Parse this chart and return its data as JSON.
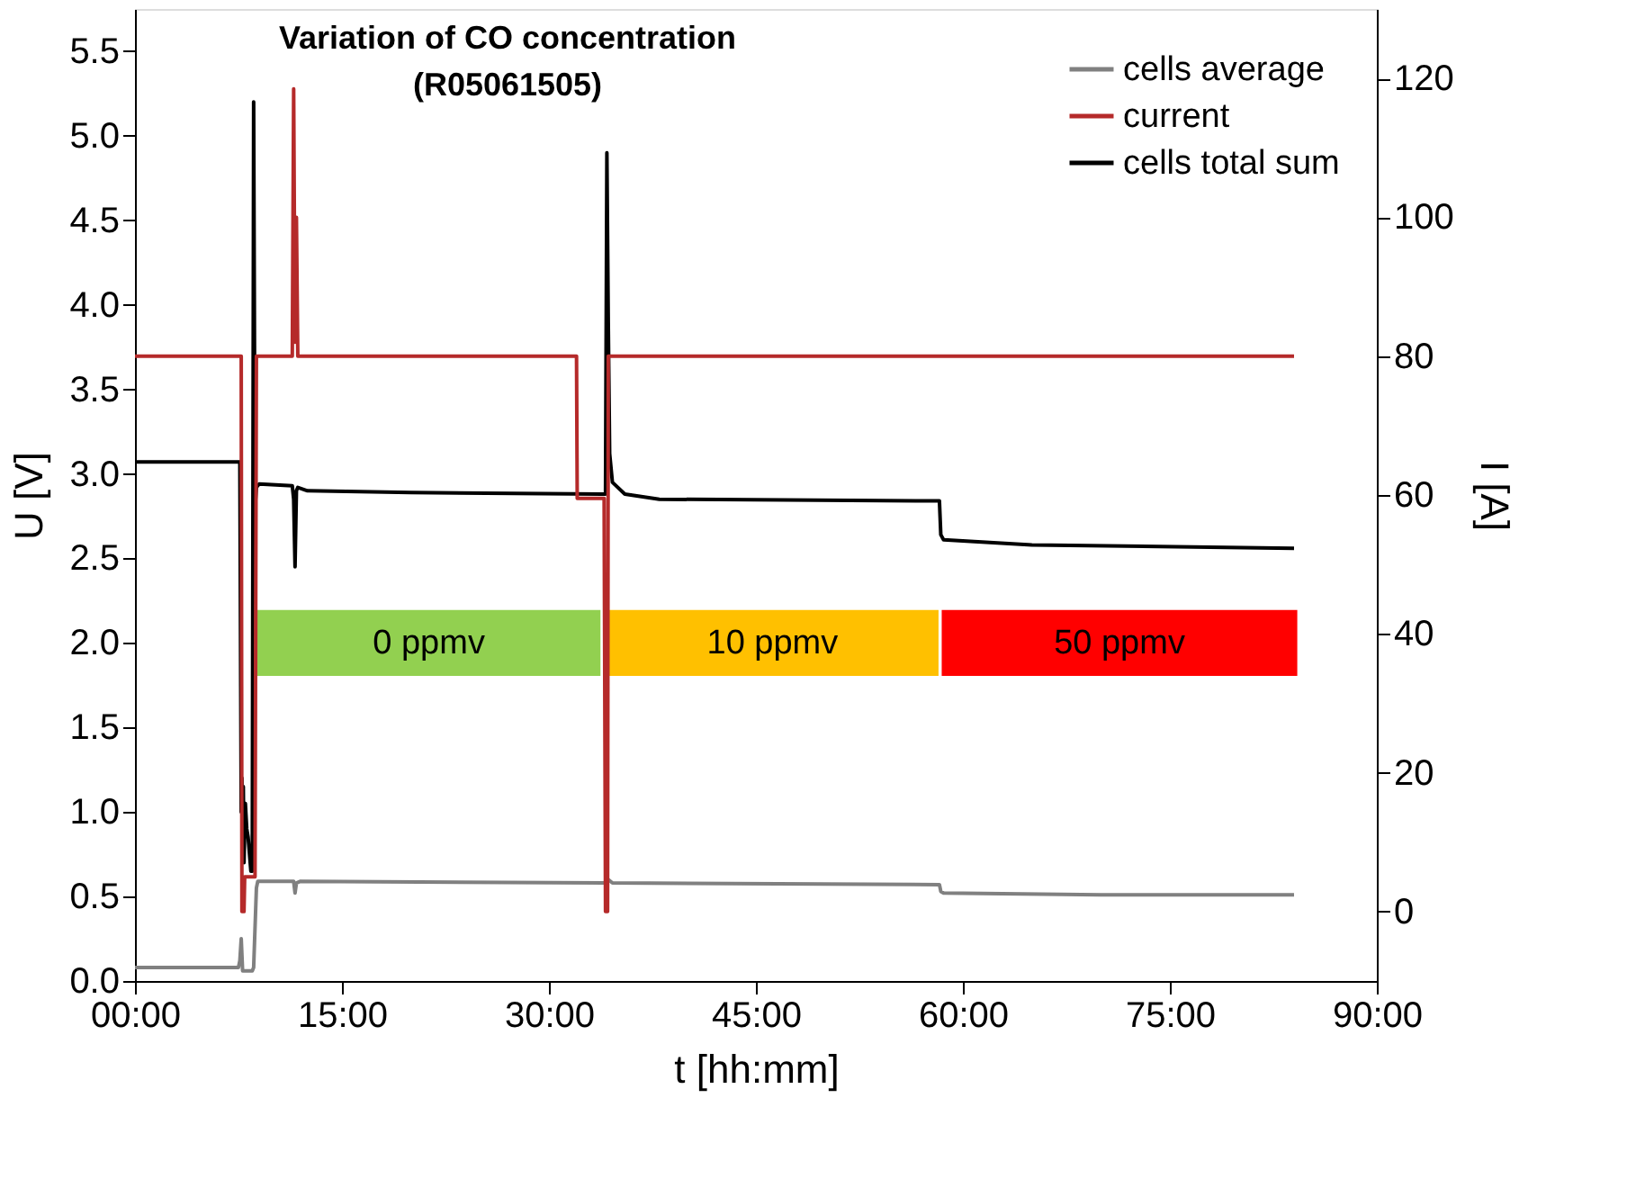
{
  "chart_data": {
    "type": "line",
    "title": "Variation of CO concentration (R05061505)",
    "xlabel": "t [hh:mm]",
    "ylabel": "U [V]",
    "y2label": "I [A]",
    "xlim": [
      0,
      90
    ],
    "xticks": [
      {
        "value": 0,
        "label": "00:00"
      },
      {
        "value": 15,
        "label": "15:00"
      },
      {
        "value": 30,
        "label": "30:00"
      },
      {
        "value": 45,
        "label": "45:00"
      },
      {
        "value": 60,
        "label": "60:00"
      },
      {
        "value": 75,
        "label": "75:00"
      },
      {
        "value": 90,
        "label": "90:00"
      }
    ],
    "ylim": [
      0,
      5.75
    ],
    "yticks": [
      {
        "value": 0,
        "label": "0.0"
      },
      0.5,
      {
        "value": 1,
        "label": "1.0"
      },
      1.5,
      {
        "value": 2,
        "label": "2.0"
      },
      2.5,
      {
        "value": 3,
        "label": "3.0"
      },
      3.5,
      {
        "value": 4,
        "label": "4.0"
      },
      4.5,
      {
        "value": 5,
        "label": "5.0"
      },
      5.5
    ],
    "y2lim": [
      -10,
      130
    ],
    "y2ticks": [
      0,
      20,
      40,
      60,
      80,
      100,
      120
    ],
    "grid": false,
    "legend": "top right",
    "marker": "none",
    "line_style": "solid",
    "series": [
      {
        "name": "cells average",
        "color": "#808080",
        "x": [
          0,
          7.5,
          7.6,
          7.7,
          7.8,
          8.5,
          8.6,
          8.8,
          8.9,
          11.5,
          11.6,
          11.7,
          12,
          34.0,
          34.3,
          34.6,
          58.3,
          58.4,
          58.6,
          70,
          84
        ],
        "values": [
          0.08,
          0.08,
          0.12,
          0.25,
          0.06,
          0.06,
          0.08,
          0.55,
          0.59,
          0.59,
          0.52,
          0.58,
          0.59,
          0.58,
          0.6,
          0.58,
          0.57,
          0.53,
          0.52,
          0.51,
          0.51
        ]
      },
      {
        "name": "current",
        "color": "#b52a2a",
        "axis": "y2",
        "x": [
          0,
          7.7,
          7.75,
          7.9,
          7.95,
          8.7,
          8.8,
          11.4,
          11.5,
          11.6,
          11.7,
          11.8,
          11.9,
          32.0,
          32.05,
          34.0,
          34.1,
          34.25,
          34.3,
          84
        ],
        "values": [
          80,
          80,
          0,
          0,
          5,
          5,
          80,
          80,
          118.5,
          82,
          100,
          80,
          80,
          80,
          59.5,
          59.5,
          0,
          0,
          80,
          80
        ]
      },
      {
        "name": "cells total sum",
        "color": "#000000",
        "x": [
          0,
          7.6,
          7.7,
          7.75,
          7.8,
          7.85,
          7.9,
          8.0,
          8.1,
          8.2,
          8.3,
          8.4,
          8.5,
          8.6,
          8.7,
          8.8,
          9.0,
          11.4,
          11.5,
          11.6,
          11.7,
          11.8,
          12.5,
          20,
          33.9,
          34.1,
          34.2,
          34.3,
          34.4,
          34.6,
          35.5,
          38,
          58.3,
          58.4,
          58.6,
          65,
          84
        ],
        "values": [
          3.07,
          3.07,
          1.0,
          1.2,
          0.8,
          1.15,
          0.7,
          1.05,
          0.9,
          0.85,
          0.75,
          0.65,
          0.65,
          5.2,
          2.8,
          2.92,
          2.94,
          2.93,
          2.85,
          2.45,
          2.9,
          2.92,
          2.9,
          2.89,
          2.88,
          2.88,
          4.9,
          3.9,
          3.12,
          2.95,
          2.88,
          2.85,
          2.84,
          2.64,
          2.61,
          2.58,
          2.56
        ]
      }
    ],
    "bands": [
      {
        "axis": "x",
        "from": 8.8,
        "to": 33.8,
        "label": "0 ppmv",
        "color": "#92d050"
      },
      {
        "axis": "x",
        "from": 34.1,
        "to": 58.3,
        "label": "10 ppmv",
        "color": "#ffc000"
      },
      {
        "axis": "x",
        "from": 58.4,
        "to": 84.3,
        "label": "50 ppmv",
        "color": "#ff0000"
      }
    ]
  }
}
